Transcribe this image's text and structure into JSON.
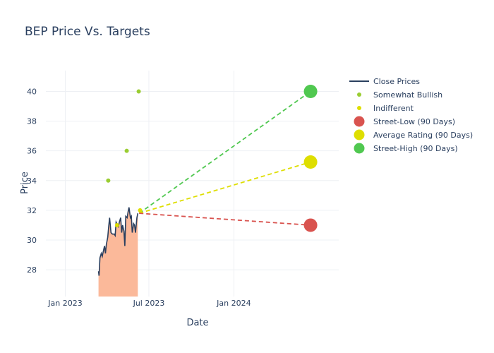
{
  "chart_data": {
    "type": "line",
    "title": "BEP Price Vs. Targets",
    "xlabel": "Date",
    "ylabel": "Price",
    "x_ticks": [
      {
        "label": "Jan 2023",
        "date": "2023-01-01"
      },
      {
        "label": "Jul 2023",
        "date": "2023-07-01"
      },
      {
        "label": "Jan 2024",
        "date": "2024-01-01"
      }
    ],
    "y_ticks": [
      28,
      30,
      32,
      34,
      36,
      38,
      40
    ],
    "xlim": [
      "2022-11-20",
      "2024-08-15"
    ],
    "ylim": [
      26.2,
      41.4
    ],
    "grid": true,
    "legend_position": "right",
    "fill_base": 26.2,
    "colors": {
      "close_line": "#2a3f5f",
      "fill": "#fbb99a",
      "somewhat_bullish": "#9acd32",
      "indifferent": "#dede00",
      "street_low": "#d9534f",
      "average": "#dede00",
      "street_high": "#50c850"
    },
    "close_prices": [
      {
        "date": "2023-03-14",
        "price": 27.9
      },
      {
        "date": "2023-03-15",
        "price": 27.6
      },
      {
        "date": "2023-03-16",
        "price": 28.1
      },
      {
        "date": "2023-03-17",
        "price": 28.8
      },
      {
        "date": "2023-03-20",
        "price": 29.1
      },
      {
        "date": "2023-03-22",
        "price": 28.9
      },
      {
        "date": "2023-03-24",
        "price": 29.2
      },
      {
        "date": "2023-03-27",
        "price": 29.6
      },
      {
        "date": "2023-03-29",
        "price": 29.1
      },
      {
        "date": "2023-03-31",
        "price": 29.7
      },
      {
        "date": "2023-04-03",
        "price": 30.2
      },
      {
        "date": "2023-04-05",
        "price": 30.9
      },
      {
        "date": "2023-04-07",
        "price": 31.5
      },
      {
        "date": "2023-04-10",
        "price": 30.5
      },
      {
        "date": "2023-04-13",
        "price": 30.4
      },
      {
        "date": "2023-04-17",
        "price": 30.4
      },
      {
        "date": "2023-04-19",
        "price": 30.3
      },
      {
        "date": "2023-04-21",
        "price": 31.2
      },
      {
        "date": "2023-04-24",
        "price": 31.0
      },
      {
        "date": "2023-04-26",
        "price": 30.9
      },
      {
        "date": "2023-04-28",
        "price": 31.2
      },
      {
        "date": "2023-05-01",
        "price": 31.5
      },
      {
        "date": "2023-05-03",
        "price": 30.5
      },
      {
        "date": "2023-05-05",
        "price": 31.0
      },
      {
        "date": "2023-05-08",
        "price": 30.6
      },
      {
        "date": "2023-05-10",
        "price": 29.6
      },
      {
        "date": "2023-05-12",
        "price": 31.6
      },
      {
        "date": "2023-05-15",
        "price": 31.5
      },
      {
        "date": "2023-05-17",
        "price": 31.9
      },
      {
        "date": "2023-05-19",
        "price": 32.2
      },
      {
        "date": "2023-05-22",
        "price": 31.5
      },
      {
        "date": "2023-05-24",
        "price": 31.6
      },
      {
        "date": "2023-05-26",
        "price": 30.5
      },
      {
        "date": "2023-05-29",
        "price": 31.1
      },
      {
        "date": "2023-05-31",
        "price": 31.0
      },
      {
        "date": "2023-06-02",
        "price": 30.5
      },
      {
        "date": "2023-06-05",
        "price": 31.5
      },
      {
        "date": "2023-06-07",
        "price": 31.8
      }
    ],
    "somewhat_bullish": [
      {
        "date": "2023-04-04",
        "price": 34
      },
      {
        "date": "2023-05-14",
        "price": 36
      },
      {
        "date": "2023-06-09",
        "price": 40
      }
    ],
    "indifferent": [
      {
        "date": "2023-04-23",
        "price": 31
      },
      {
        "date": "2023-06-12",
        "price": 32
      }
    ],
    "target_start": {
      "date": "2023-06-10",
      "price": 31.8
    },
    "targets": [
      {
        "key": "street_high",
        "date": "2024-06-15",
        "price": 40
      },
      {
        "key": "average",
        "date": "2024-06-15",
        "price": 35.25
      },
      {
        "key": "street_low",
        "date": "2024-06-15",
        "price": 31
      }
    ],
    "legend": [
      {
        "label": "Close Prices",
        "kind": "line",
        "color": "#2a3f5f"
      },
      {
        "label": "Somewhat Bullish",
        "kind": "small-dot",
        "color": "#9acd32"
      },
      {
        "label": "Indifferent",
        "kind": "small-dot",
        "color": "#dede00"
      },
      {
        "label": "Street-Low (90 Days)",
        "kind": "big-dot",
        "color": "#d9534f"
      },
      {
        "label": "Average Rating (90 Days)",
        "kind": "big-dot",
        "color": "#dede00"
      },
      {
        "label": "Street-High (90 Days)",
        "kind": "big-dot",
        "color": "#50c850"
      }
    ]
  }
}
